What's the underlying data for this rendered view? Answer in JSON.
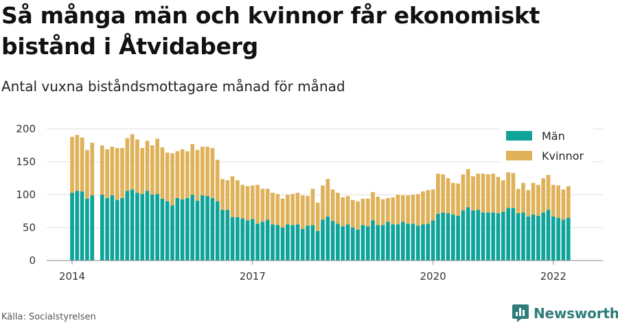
{
  "header": {
    "title": "Så många män och kvinnor får ekonomiskt bistånd i Åtvidaberg",
    "subtitle": "Antal vuxna biståndsmottagare månad för månad"
  },
  "footer": {
    "source": "Källa: Socialstyrelsen",
    "brand": "Newsworthy"
  },
  "colors": {
    "men": "#0fa39a",
    "women": "#dfb25a",
    "grid": "#dddddd",
    "axis": "#888888",
    "brand": "#2f7d7a"
  },
  "icons": {
    "brand_logo": "bar-chart-logo-icon"
  },
  "chart_data": {
    "type": "bar",
    "stacked": true,
    "title": "",
    "xlabel": "",
    "ylabel": "",
    "ylim": [
      0,
      200
    ],
    "y_ticks": [
      0,
      50,
      100,
      150,
      200
    ],
    "x_ticks": [
      {
        "label": "2014",
        "month_index": 0
      },
      {
        "label": "2017",
        "month_index": 36
      },
      {
        "label": "2020",
        "month_index": 72
      },
      {
        "label": "2022",
        "month_index": 96
      }
    ],
    "grid": true,
    "legend_position": "top-right",
    "series": [
      {
        "name": "Män",
        "color": "#0fa39a",
        "values": [
          103,
          106,
          105,
          94,
          99,
          null,
          100,
          95,
          99,
          92,
          95,
          106,
          108,
          103,
          101,
          106,
          100,
          101,
          94,
          90,
          84,
          95,
          93,
          95,
          100,
          91,
          99,
          98,
          95,
          90,
          77,
          77,
          66,
          66,
          64,
          61,
          63,
          56,
          59,
          62,
          55,
          54,
          50,
          55,
          54,
          55,
          48,
          53,
          54,
          45,
          62,
          67,
          60,
          56,
          52,
          55,
          50,
          47,
          54,
          52,
          61,
          54,
          54,
          59,
          55,
          55,
          59,
          56,
          56,
          53,
          55,
          56,
          61,
          71,
          73,
          72,
          70,
          68,
          76,
          81,
          76,
          77,
          73,
          73,
          73,
          72,
          74,
          80,
          80,
          72,
          73,
          67,
          70,
          68,
          73,
          77,
          67,
          65,
          62,
          65
        ]
      },
      {
        "name": "Kvinnor",
        "color": "#dfb25a",
        "values": [
          85,
          85,
          82,
          74,
          80,
          null,
          75,
          74,
          74,
          79,
          76,
          80,
          84,
          81,
          70,
          76,
          75,
          84,
          78,
          74,
          79,
          71,
          76,
          71,
          77,
          77,
          74,
          75,
          76,
          63,
          47,
          45,
          62,
          56,
          51,
          52,
          51,
          59,
          50,
          47,
          48,
          47,
          44,
          45,
          47,
          48,
          51,
          45,
          55,
          43,
          52,
          57,
          48,
          47,
          44,
          43,
          42,
          43,
          40,
          42,
          43,
          43,
          39,
          36,
          41,
          45,
          40,
          43,
          44,
          48,
          50,
          51,
          47,
          61,
          58,
          53,
          48,
          49,
          55,
          58,
          52,
          55,
          59,
          58,
          59,
          55,
          48,
          54,
          53,
          37,
          45,
          40,
          48,
          47,
          52,
          53,
          48,
          49,
          46,
          48
        ]
      }
    ]
  }
}
